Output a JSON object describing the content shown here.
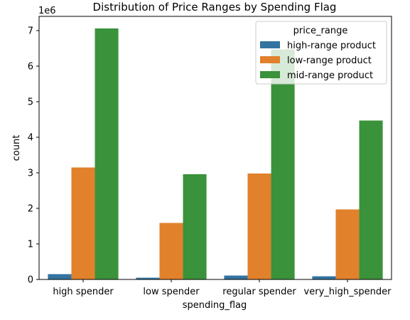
{
  "chart_data": {
    "type": "bar",
    "title": "Distribution of Price Ranges by Spending Flag",
    "xlabel": "spending_flag",
    "ylabel": "count",
    "offset_label": "1e6",
    "categories": [
      "high spender",
      "low spender",
      "regular spender",
      "very_high_spender"
    ],
    "ylim": [
      0,
      7.4
    ],
    "yticks": [
      "0",
      "1",
      "2",
      "3",
      "4",
      "5",
      "6",
      "7"
    ],
    "legend": {
      "title": "price_range",
      "placement": "top-right"
    },
    "grid": false,
    "series": [
      {
        "name": "high-range product",
        "color": "#3274a1",
        "values": [
          0.15,
          0.05,
          0.11,
          0.09
        ]
      },
      {
        "name": "low-range product",
        "color": "#e1812c",
        "values": [
          3.15,
          1.59,
          2.98,
          1.97
        ]
      },
      {
        "name": "mid-range product",
        "color": "#3a923a",
        "values": [
          7.06,
          2.96,
          6.47,
          4.47
        ]
      }
    ]
  }
}
